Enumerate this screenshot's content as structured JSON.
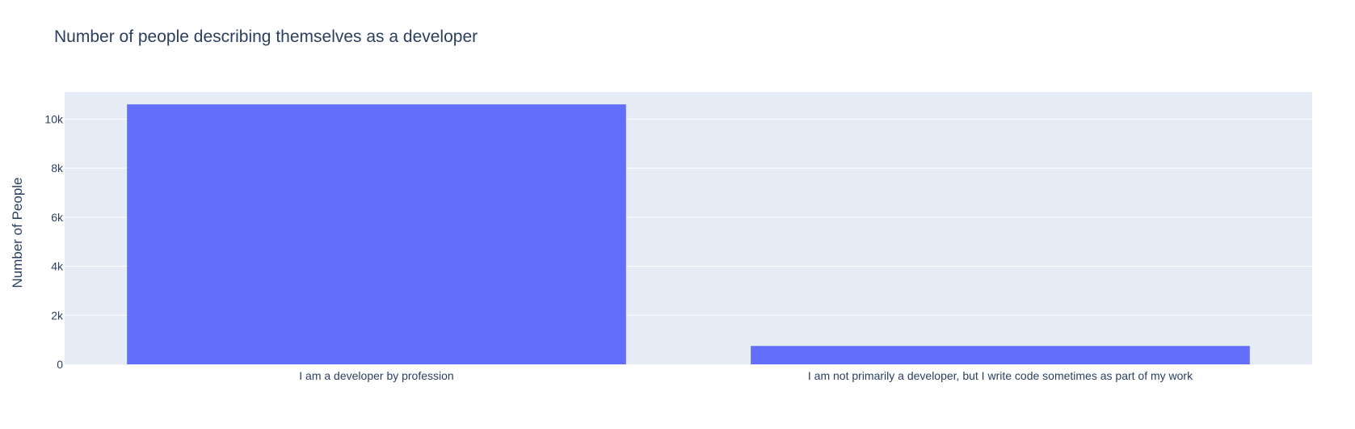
{
  "chart_data": {
    "type": "bar",
    "title": "Number of people describing themselves as a developer",
    "xlabel": "",
    "ylabel": "Number of People",
    "categories": [
      "I am a developer by profession",
      "I am not primarily a developer, but I write code sometimes as part of my work"
    ],
    "values": [
      10600,
      750
    ],
    "ylim": [
      0,
      11100
    ],
    "yticks": [
      0,
      2000,
      4000,
      6000,
      8000,
      10000
    ],
    "ytick_labels": [
      "0",
      "2k",
      "4k",
      "6k",
      "8k",
      "10k"
    ],
    "grid": true,
    "legend": "none"
  },
  "colors": {
    "bar": "#636efa",
    "plot_background": "#e5ecf6",
    "text": "#2a3f5f",
    "grid": "#ffffff"
  }
}
